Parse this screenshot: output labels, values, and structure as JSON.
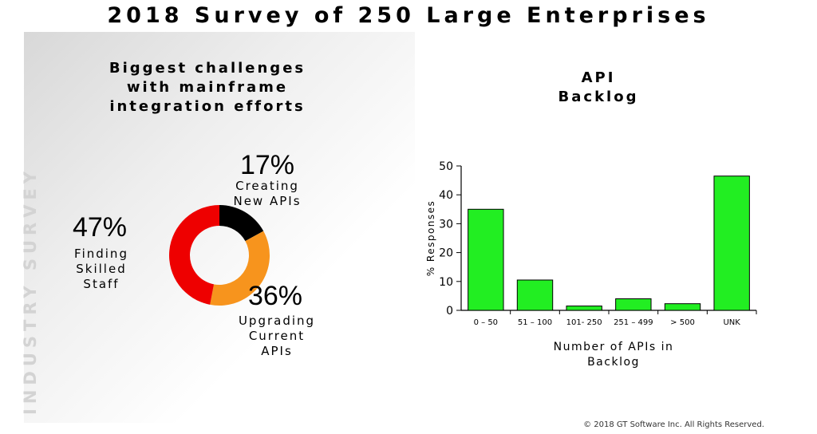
{
  "header": {
    "title": "2018 Survey of 250 Large Enterprises"
  },
  "side_label": "INDUSTRY SURVEY",
  "colors": {
    "bar": "#22ee22",
    "red": "#ee0000",
    "orange": "#f7941d",
    "black": "#000000"
  },
  "chart_data": [
    {
      "type": "pie",
      "title_lines": [
        "Biggest challenges",
        "with mainframe",
        "integration efforts"
      ],
      "slices": [
        {
          "pct_label": "17%",
          "value": 17,
          "label_lines": [
            "Creating",
            "New APIs"
          ],
          "color": "#000000"
        },
        {
          "pct_label": "36%",
          "value": 36,
          "label_lines": [
            "Upgrading",
            "Current",
            "APIs"
          ],
          "color": "#f7941d"
        },
        {
          "pct_label": "47%",
          "value": 47,
          "label_lines": [
            "Finding",
            "Skilled",
            "Staff"
          ],
          "color": "#ee0000"
        }
      ]
    },
    {
      "type": "bar",
      "title_lines": [
        "API",
        "Backlog"
      ],
      "categories": [
        "0 – 50",
        "51 – 100",
        "101- 250",
        "251 – 499",
        "> 500",
        "UNK"
      ],
      "values": [
        35,
        10.5,
        1.5,
        4,
        2.3,
        46.5
      ],
      "ylabel": "% Responses",
      "xlabel_lines": [
        "Number of APIs in",
        "Backlog"
      ],
      "ylim": [
        0,
        50
      ],
      "yticks": [
        "0",
        "10",
        "20",
        "30",
        "40",
        "50"
      ]
    }
  ],
  "footer": {
    "copyright": "© 2018 GT Software Inc. All Rights Reserved."
  }
}
